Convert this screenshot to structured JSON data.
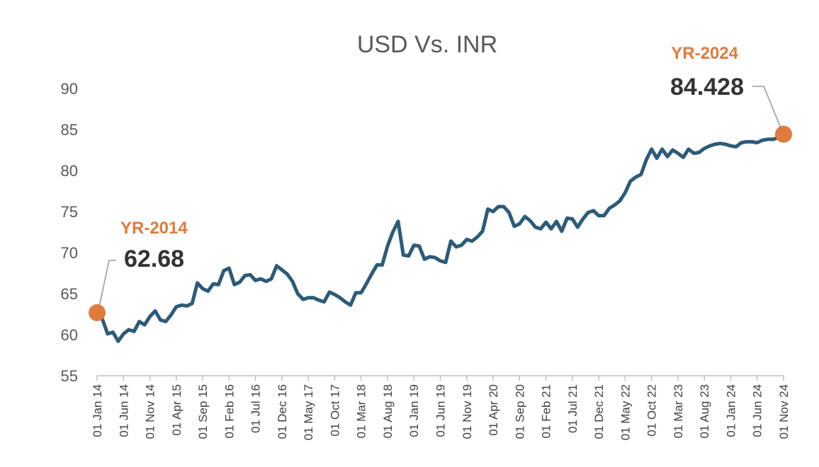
{
  "chart_data": {
    "type": "line",
    "title": "USD Vs. INR",
    "xlabel": "",
    "ylabel": "",
    "ylim": [
      55,
      90
    ],
    "y_ticks": [
      55,
      60,
      65,
      70,
      75,
      80,
      85,
      90
    ],
    "x_tick_labels": [
      "01 Jan 14",
      "01 Jun 14",
      "01 Nov 14",
      "01 Apr 15",
      "01 Sep 15",
      "01 Feb 16",
      "01 Jul 16",
      "01 Dec 16",
      "01 May 17",
      "01 Oct 17",
      "01 Mar 18",
      "01 Aug 18",
      "01 Jan 19",
      "01 Jun 19",
      "01 Nov 19",
      "01 Apr 20",
      "01 Sep 20",
      "01 Feb 21",
      "01 Jul 21",
      "01 Dec 21",
      "01 May 22",
      "01 Oct 22",
      "01 Mar 23",
      "01 Aug 23",
      "01 Jan 24",
      "01 Jun 24",
      "01 Nov 24"
    ],
    "grid": false,
    "legend": "none",
    "line_color": "#2B5B78",
    "marker_color": "#E07B3C",
    "series": [
      {
        "x": [
          "2014-01",
          "2014-02",
          "2014-03",
          "2014-04",
          "2014-05",
          "2014-06",
          "2014-07",
          "2014-08",
          "2014-09",
          "2014-10",
          "2014-11",
          "2014-12",
          "2015-01",
          "2015-02",
          "2015-03",
          "2015-04",
          "2015-05",
          "2015-06",
          "2015-07",
          "2015-08",
          "2015-09",
          "2015-10",
          "2015-11",
          "2015-12",
          "2016-01",
          "2016-02",
          "2016-03",
          "2016-04",
          "2016-05",
          "2016-06",
          "2016-07",
          "2016-08",
          "2016-09",
          "2016-10",
          "2016-11",
          "2016-12",
          "2017-01",
          "2017-02",
          "2017-03",
          "2017-04",
          "2017-05",
          "2017-06",
          "2017-07",
          "2017-08",
          "2017-09",
          "2017-10",
          "2017-11",
          "2017-12",
          "2018-01",
          "2018-02",
          "2018-03",
          "2018-04",
          "2018-05",
          "2018-06",
          "2018-07",
          "2018-08",
          "2018-09",
          "2018-10",
          "2018-11",
          "2018-12",
          "2019-01",
          "2019-02",
          "2019-03",
          "2019-04",
          "2019-05",
          "2019-06",
          "2019-07",
          "2019-08",
          "2019-09",
          "2019-10",
          "2019-11",
          "2019-12",
          "2020-01",
          "2020-02",
          "2020-03",
          "2020-04",
          "2020-05",
          "2020-06",
          "2020-07",
          "2020-08",
          "2020-09",
          "2020-10",
          "2020-11",
          "2020-12",
          "2021-01",
          "2021-02",
          "2021-03",
          "2021-04",
          "2021-05",
          "2021-06",
          "2021-07",
          "2021-08",
          "2021-09",
          "2021-10",
          "2021-11",
          "2021-12",
          "2022-01",
          "2022-02",
          "2022-03",
          "2022-04",
          "2022-05",
          "2022-06",
          "2022-07",
          "2022-08",
          "2022-09",
          "2022-10",
          "2022-11",
          "2022-12",
          "2023-01",
          "2023-02",
          "2023-03",
          "2023-04",
          "2023-05",
          "2023-06",
          "2023-07",
          "2023-08",
          "2023-09",
          "2023-10",
          "2023-11",
          "2023-12",
          "2024-01",
          "2024-02",
          "2024-03",
          "2024-04",
          "2024-05",
          "2024-06",
          "2024-07",
          "2024-08",
          "2024-09",
          "2024-10",
          "2024-11"
        ],
        "values": [
          62.68,
          61.9,
          60.1,
          60.3,
          59.2,
          60.1,
          60.6,
          60.4,
          61.6,
          61.2,
          62.2,
          62.9,
          61.8,
          61.6,
          62.4,
          63.4,
          63.6,
          63.5,
          63.8,
          66.3,
          65.6,
          65.3,
          66.2,
          66.1,
          67.8,
          68.1,
          66.1,
          66.4,
          67.2,
          67.3,
          66.6,
          66.8,
          66.5,
          66.8,
          68.4,
          67.9,
          67.4,
          66.5,
          65.0,
          64.3,
          64.5,
          64.5,
          64.2,
          64.0,
          65.2,
          64.9,
          64.5,
          64.0,
          63.6,
          65.1,
          65.1,
          66.2,
          67.4,
          68.5,
          68.5,
          70.8,
          72.5,
          73.8,
          69.7,
          69.6,
          70.9,
          70.8,
          69.2,
          69.5,
          69.4,
          69.0,
          68.8,
          71.4,
          70.7,
          70.9,
          71.6,
          71.4,
          71.9,
          72.6,
          75.3,
          75.0,
          75.6,
          75.6,
          74.9,
          73.2,
          73.5,
          74.4,
          73.9,
          73.1,
          72.9,
          73.7,
          72.9,
          73.8,
          72.6,
          74.2,
          74.1,
          73.1,
          74.1,
          74.9,
          75.1,
          74.5,
          74.5,
          75.4,
          75.8,
          76.3,
          77.3,
          78.7,
          79.2,
          79.5,
          81.3,
          82.6,
          81.5,
          82.6,
          81.7,
          82.5,
          82.1,
          81.6,
          82.6,
          82.1,
          82.2,
          82.7,
          83.0,
          83.2,
          83.3,
          83.2,
          83.0,
          82.9,
          83.4,
          83.5,
          83.5,
          83.4,
          83.7,
          83.8,
          83.8,
          84.0,
          84.428
        ]
      }
    ],
    "annotations": [
      {
        "label": "YR-2014",
        "value": "62.68",
        "x": "2014-01",
        "y": 62.68
      },
      {
        "label": "YR-2024",
        "value": "84.428",
        "x": "2024-11",
        "y": 84.428
      }
    ]
  }
}
